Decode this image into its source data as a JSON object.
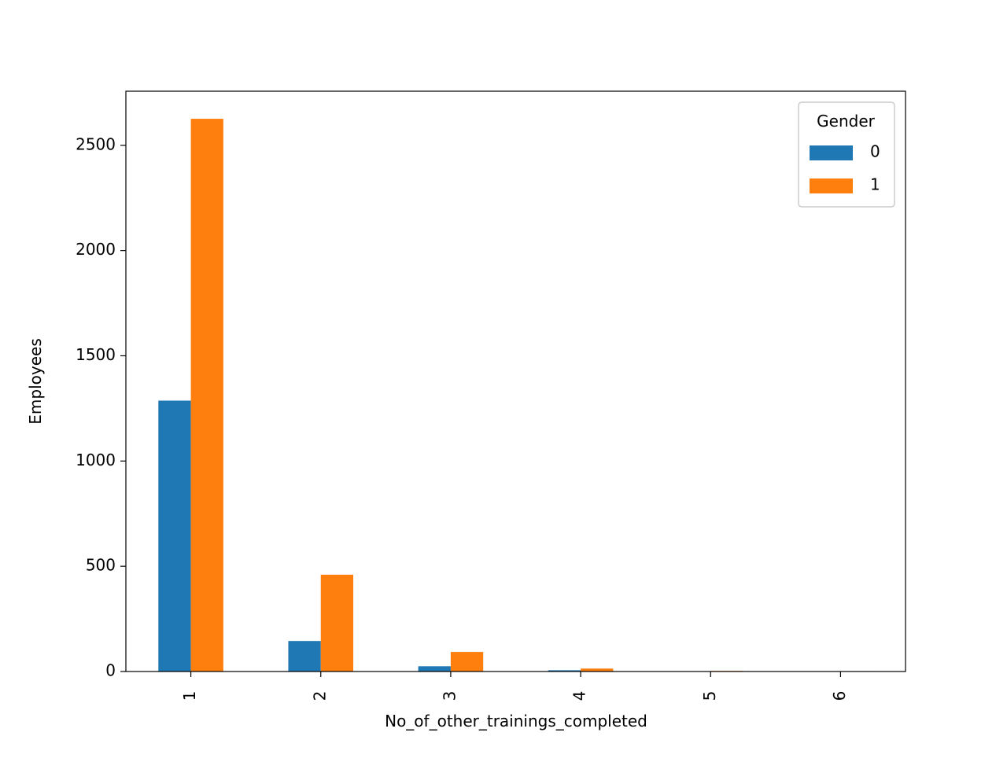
{
  "chart_data": {
    "type": "bar",
    "title": "",
    "xlabel": "No_of_other_trainings_completed",
    "ylabel": "Employees",
    "categories": [
      "1",
      "2",
      "3",
      "4",
      "5",
      "6"
    ],
    "series": [
      {
        "name": "0",
        "values": [
          1287,
          145,
          25,
          6,
          1,
          1
        ]
      },
      {
        "name": "1",
        "values": [
          2626,
          460,
          93,
          14,
          3,
          2
        ]
      }
    ],
    "ylim": [
      0,
      2757
    ],
    "yticks": [
      0,
      500,
      1000,
      1500,
      2000,
      2500
    ],
    "ytick_labels": [
      "0",
      "500",
      "1000",
      "1500",
      "2000",
      "2500"
    ],
    "legend": {
      "title": "Gender",
      "placement": "upper right"
    },
    "grid": false,
    "colors": {
      "0": "#1f77b4",
      "1": "#ff7f0e"
    }
  }
}
